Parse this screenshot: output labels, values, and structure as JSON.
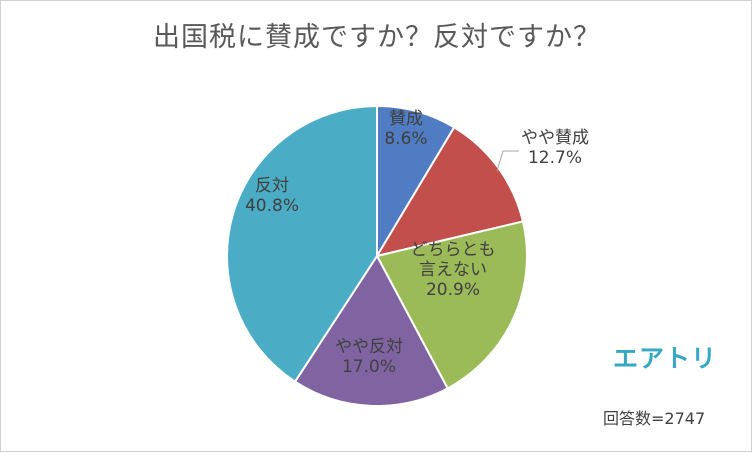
{
  "chart_data": {
    "type": "pie",
    "title": "出国税に賛成ですか？反対ですか？",
    "slices": [
      {
        "label": "賛成",
        "value": 8.6,
        "display": "8.6%",
        "color": "#4f7cc2"
      },
      {
        "label": "やや賛成",
        "value": 12.7,
        "display": "12.7%",
        "color": "#c24f4c"
      },
      {
        "label": "どちらとも言えない",
        "display_lines": [
          "どちらとも",
          "言えない"
        ],
        "value": 20.9,
        "display": "20.9%",
        "color": "#9bbb59"
      },
      {
        "label": "やや反対",
        "value": 17.0,
        "display": "17.0%",
        "color": "#8064a2"
      },
      {
        "label": "反対",
        "value": 40.8,
        "display": "40.8%",
        "color": "#4bacc6"
      }
    ],
    "start_angle": "12 o'clock",
    "direction": "clockwise"
  },
  "brand": "エアトリ",
  "footnote": "回答数=2747"
}
